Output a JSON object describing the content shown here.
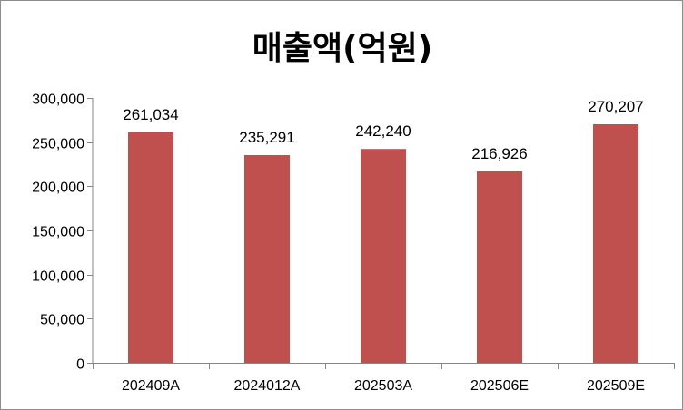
{
  "chart_data": {
    "type": "bar",
    "title": "매출액(억원)",
    "categories": [
      "202409A",
      "2024012A",
      "202503A",
      "202506E",
      "202509E"
    ],
    "values": [
      261034,
      235291,
      242240,
      216926,
      270207
    ],
    "value_labels": [
      "261,034",
      "235,291",
      "242,240",
      "216,926",
      "270,207"
    ],
    "ylim": [
      0,
      300000
    ],
    "y_ticks": [
      0,
      50000,
      100000,
      150000,
      200000,
      250000,
      300000
    ],
    "y_tick_labels": [
      "0",
      "50,000",
      "100,000",
      "150,000",
      "200,000",
      "250,000",
      "300,000"
    ],
    "grid": false,
    "legend": "none",
    "bar_color": "#c0504d",
    "axis_color": "#868686"
  }
}
